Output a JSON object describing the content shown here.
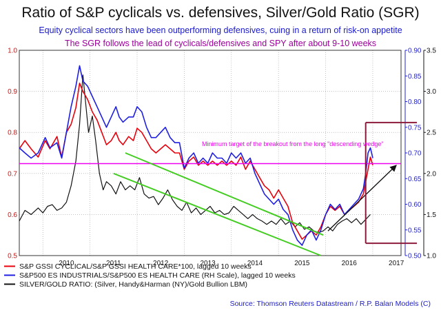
{
  "colors": {
    "red": "#e8000b",
    "blue": "#1e1ee0",
    "black": "#111111",
    "green": "#44cc22",
    "magenta": "#ee00ee",
    "maroon": "#8b1a3a",
    "left_axis": "#c21818",
    "right_axis": "#2222cc",
    "outer_axis": "#111111",
    "grid": "#9a9a9a",
    "title_line2": "#1a1acc",
    "title_line3": "#9a0099"
  },
  "chart_data": {
    "type": "line",
    "title": "Ratio of S&P cyclicals vs. defensives, Silver/Gold Ratio (SGR)",
    "subtitle": "Equity cyclical sectors have been outperforming defensives, cuing in a return of risk-on appetite",
    "subtitle2": "The SGR follows the lead of cyclicals/defensives and SPY after about 9-10 weeks",
    "x_ticks": [
      "2010",
      "2011",
      "2012",
      "2013",
      "2014",
      "2015",
      "2016",
      "2017"
    ],
    "xlim": [
      2009.5,
      2017.6
    ],
    "y_left": {
      "ticks": [
        "0.5",
        "0.6",
        "0.7",
        "0.8",
        "0.9",
        "1.0"
      ],
      "ylim": [
        0.5,
        1.0
      ]
    },
    "y_right_1": {
      "ticks": [
        "0.50",
        "0.55",
        "0.60",
        "0.65",
        "0.70",
        "0.75",
        "0.80",
        "0.85",
        "0.90"
      ],
      "ylim": [
        0.5,
        0.9
      ]
    },
    "y_right_2": {
      "ticks": [
        "1.0",
        "1.5",
        "2.0",
        "2.5",
        "3.0",
        "3.5"
      ],
      "ylim": [
        1.0,
        3.5
      ]
    },
    "series": [
      {
        "name": "S&P GSSI CYCLICAL/S&P GSSI HEALTH CARE*100, lagged 10 weeks",
        "color": "red",
        "axis": "left",
        "points": [
          [
            2009.5,
            0.76
          ],
          [
            2009.62,
            0.78
          ],
          [
            2009.75,
            0.76
          ],
          [
            2009.9,
            0.74
          ],
          [
            2010.05,
            0.78
          ],
          [
            2010.15,
            0.76
          ],
          [
            2010.3,
            0.79
          ],
          [
            2010.4,
            0.74
          ],
          [
            2010.5,
            0.8
          ],
          [
            2010.6,
            0.82
          ],
          [
            2010.7,
            0.86
          ],
          [
            2010.78,
            0.92
          ],
          [
            2010.85,
            0.9
          ],
          [
            2010.95,
            0.88
          ],
          [
            2011.05,
            0.85
          ],
          [
            2011.15,
            0.83
          ],
          [
            2011.25,
            0.8
          ],
          [
            2011.35,
            0.77
          ],
          [
            2011.45,
            0.78
          ],
          [
            2011.55,
            0.8
          ],
          [
            2011.62,
            0.78
          ],
          [
            2011.7,
            0.77
          ],
          [
            2011.82,
            0.79
          ],
          [
            2011.92,
            0.78
          ],
          [
            2012.0,
            0.81
          ],
          [
            2012.1,
            0.8
          ],
          [
            2012.2,
            0.78
          ],
          [
            2012.3,
            0.76
          ],
          [
            2012.4,
            0.75
          ],
          [
            2012.5,
            0.76
          ],
          [
            2012.6,
            0.77
          ],
          [
            2012.7,
            0.76
          ],
          [
            2012.8,
            0.75
          ],
          [
            2012.9,
            0.75
          ],
          [
            2013.0,
            0.71
          ],
          [
            2013.1,
            0.73
          ],
          [
            2013.2,
            0.74
          ],
          [
            2013.3,
            0.72
          ],
          [
            2013.4,
            0.73
          ],
          [
            2013.5,
            0.72
          ],
          [
            2013.6,
            0.73
          ],
          [
            2013.7,
            0.72
          ],
          [
            2013.8,
            0.73
          ],
          [
            2013.9,
            0.72
          ],
          [
            2014.0,
            0.73
          ],
          [
            2014.1,
            0.72
          ],
          [
            2014.2,
            0.74
          ],
          [
            2014.3,
            0.71
          ],
          [
            2014.4,
            0.73
          ],
          [
            2014.5,
            0.71
          ],
          [
            2014.6,
            0.69
          ],
          [
            2014.7,
            0.67
          ],
          [
            2014.8,
            0.66
          ],
          [
            2014.9,
            0.64
          ],
          [
            2015.0,
            0.66
          ],
          [
            2015.1,
            0.64
          ],
          [
            2015.2,
            0.62
          ],
          [
            2015.3,
            0.58
          ],
          [
            2015.4,
            0.56
          ],
          [
            2015.5,
            0.54
          ],
          [
            2015.6,
            0.55
          ],
          [
            2015.7,
            0.56
          ],
          [
            2015.8,
            0.55
          ],
          [
            2015.9,
            0.57
          ],
          [
            2016.0,
            0.6
          ],
          [
            2016.1,
            0.62
          ],
          [
            2016.2,
            0.61
          ],
          [
            2016.3,
            0.62
          ],
          [
            2016.4,
            0.6
          ],
          [
            2016.5,
            0.61
          ],
          [
            2016.6,
            0.62
          ],
          [
            2016.7,
            0.63
          ],
          [
            2016.8,
            0.65
          ],
          [
            2016.85,
            0.68
          ],
          [
            2016.9,
            0.71
          ],
          [
            2016.95,
            0.74
          ],
          [
            2017.0,
            0.72
          ]
        ]
      },
      {
        "name": "S&P500 ES INDUSTRIALS/S&P500 ES HEALTH CARE (RH Scale), lagged 10 weeks",
        "color": "blue",
        "axis": "right_1",
        "points": [
          [
            2009.5,
            0.71
          ],
          [
            2009.62,
            0.7
          ],
          [
            2009.75,
            0.69
          ],
          [
            2009.9,
            0.7
          ],
          [
            2010.05,
            0.73
          ],
          [
            2010.15,
            0.71
          ],
          [
            2010.3,
            0.72
          ],
          [
            2010.4,
            0.69
          ],
          [
            2010.5,
            0.74
          ],
          [
            2010.6,
            0.79
          ],
          [
            2010.7,
            0.83
          ],
          [
            2010.78,
            0.87
          ],
          [
            2010.85,
            0.84
          ],
          [
            2010.95,
            0.83
          ],
          [
            2011.05,
            0.81
          ],
          [
            2011.15,
            0.79
          ],
          [
            2011.25,
            0.77
          ],
          [
            2011.35,
            0.75
          ],
          [
            2011.45,
            0.77
          ],
          [
            2011.55,
            0.79
          ],
          [
            2011.62,
            0.77
          ],
          [
            2011.7,
            0.76
          ],
          [
            2011.82,
            0.77
          ],
          [
            2011.92,
            0.77
          ],
          [
            2012.0,
            0.79
          ],
          [
            2012.1,
            0.78
          ],
          [
            2012.2,
            0.75
          ],
          [
            2012.3,
            0.73
          ],
          [
            2012.4,
            0.73
          ],
          [
            2012.5,
            0.74
          ],
          [
            2012.6,
            0.75
          ],
          [
            2012.7,
            0.73
          ],
          [
            2012.8,
            0.72
          ],
          [
            2012.9,
            0.72
          ],
          [
            2013.0,
            0.67
          ],
          [
            2013.1,
            0.69
          ],
          [
            2013.2,
            0.7
          ],
          [
            2013.3,
            0.68
          ],
          [
            2013.4,
            0.69
          ],
          [
            2013.5,
            0.68
          ],
          [
            2013.6,
            0.7
          ],
          [
            2013.7,
            0.69
          ],
          [
            2013.8,
            0.69
          ],
          [
            2013.9,
            0.68
          ],
          [
            2014.0,
            0.7
          ],
          [
            2014.1,
            0.69
          ],
          [
            2014.2,
            0.7
          ],
          [
            2014.3,
            0.68
          ],
          [
            2014.4,
            0.69
          ],
          [
            2014.5,
            0.66
          ],
          [
            2014.6,
            0.64
          ],
          [
            2014.7,
            0.62
          ],
          [
            2014.8,
            0.61
          ],
          [
            2014.9,
            0.6
          ],
          [
            2015.0,
            0.61
          ],
          [
            2015.1,
            0.59
          ],
          [
            2015.2,
            0.58
          ],
          [
            2015.3,
            0.55
          ],
          [
            2015.4,
            0.53
          ],
          [
            2015.5,
            0.52
          ],
          [
            2015.6,
            0.54
          ],
          [
            2015.7,
            0.55
          ],
          [
            2015.8,
            0.53
          ],
          [
            2015.9,
            0.55
          ],
          [
            2016.0,
            0.58
          ],
          [
            2016.1,
            0.6
          ],
          [
            2016.2,
            0.59
          ],
          [
            2016.3,
            0.6
          ],
          [
            2016.4,
            0.58
          ],
          [
            2016.5,
            0.59
          ],
          [
            2016.6,
            0.6
          ],
          [
            2016.7,
            0.61
          ],
          [
            2016.8,
            0.63
          ],
          [
            2016.85,
            0.66
          ],
          [
            2016.9,
            0.7
          ],
          [
            2016.95,
            0.71
          ],
          [
            2017.0,
            0.69
          ]
        ]
      },
      {
        "name": "SILVER/GOLD RATIO: (Silver, Handy&Harman (NY)/Gold Bullion LBM)",
        "color": "black",
        "axis": "right_2",
        "points": [
          [
            2009.5,
            1.42
          ],
          [
            2009.62,
            1.55
          ],
          [
            2009.75,
            1.5
          ],
          [
            2009.9,
            1.58
          ],
          [
            2010.0,
            1.52
          ],
          [
            2010.1,
            1.6
          ],
          [
            2010.2,
            1.62
          ],
          [
            2010.3,
            1.55
          ],
          [
            2010.4,
            1.58
          ],
          [
            2010.5,
            1.65
          ],
          [
            2010.6,
            1.85
          ],
          [
            2010.7,
            2.15
          ],
          [
            2010.78,
            2.6
          ],
          [
            2010.85,
            3.2
          ],
          [
            2010.9,
            2.9
          ],
          [
            2010.97,
            2.5
          ],
          [
            2011.05,
            2.7
          ],
          [
            2011.12,
            2.4
          ],
          [
            2011.2,
            2.0
          ],
          [
            2011.28,
            1.8
          ],
          [
            2011.35,
            1.9
          ],
          [
            2011.45,
            1.85
          ],
          [
            2011.55,
            1.75
          ],
          [
            2011.65,
            1.9
          ],
          [
            2011.75,
            1.8
          ],
          [
            2011.85,
            1.85
          ],
          [
            2011.95,
            1.8
          ],
          [
            2012.05,
            1.95
          ],
          [
            2012.15,
            1.75
          ],
          [
            2012.25,
            1.7
          ],
          [
            2012.35,
            1.72
          ],
          [
            2012.45,
            1.62
          ],
          [
            2012.55,
            1.7
          ],
          [
            2012.65,
            1.8
          ],
          [
            2012.75,
            1.68
          ],
          [
            2012.85,
            1.6
          ],
          [
            2012.95,
            1.55
          ],
          [
            2013.05,
            1.65
          ],
          [
            2013.15,
            1.52
          ],
          [
            2013.25,
            1.58
          ],
          [
            2013.35,
            1.5
          ],
          [
            2013.45,
            1.55
          ],
          [
            2013.55,
            1.6
          ],
          [
            2013.65,
            1.52
          ],
          [
            2013.75,
            1.55
          ],
          [
            2013.85,
            1.5
          ],
          [
            2013.95,
            1.52
          ],
          [
            2014.05,
            1.6
          ],
          [
            2014.15,
            1.55
          ],
          [
            2014.25,
            1.5
          ],
          [
            2014.35,
            1.45
          ],
          [
            2014.45,
            1.5
          ],
          [
            2014.55,
            1.45
          ],
          [
            2014.65,
            1.42
          ],
          [
            2014.75,
            1.38
          ],
          [
            2014.85,
            1.42
          ],
          [
            2014.95,
            1.38
          ],
          [
            2015.05,
            1.45
          ],
          [
            2015.15,
            1.38
          ],
          [
            2015.25,
            1.42
          ],
          [
            2015.35,
            1.35
          ],
          [
            2015.45,
            1.4
          ],
          [
            2015.55,
            1.32
          ],
          [
            2015.65,
            1.35
          ],
          [
            2015.75,
            1.3
          ],
          [
            2015.85,
            1.28
          ],
          [
            2015.95,
            1.3
          ],
          [
            2016.05,
            1.35
          ],
          [
            2016.15,
            1.3
          ],
          [
            2016.25,
            1.38
          ],
          [
            2016.35,
            1.42
          ],
          [
            2016.45,
            1.45
          ],
          [
            2016.55,
            1.4
          ],
          [
            2016.65,
            1.45
          ],
          [
            2016.75,
            1.38
          ],
          [
            2016.85,
            1.44
          ],
          [
            2016.95,
            1.5
          ]
        ]
      }
    ],
    "overlays": [
      {
        "kind": "hline",
        "axis": "right_2",
        "y": 2.12,
        "x_range": [
          2009.5,
          2017.6
        ],
        "color": "magenta"
      },
      {
        "kind": "segment",
        "axis": "left",
        "from": [
          2011.5,
          0.7
        ],
        "to": [
          2015.9,
          0.5
        ],
        "color": "green"
      },
      {
        "kind": "segment",
        "axis": "left",
        "from": [
          2011.75,
          0.75
        ],
        "to": [
          2015.95,
          0.55
        ],
        "color": "green"
      },
      {
        "kind": "arrow",
        "axis": "right_2",
        "from": [
          2016.05,
          1.3
        ],
        "to": [
          2017.5,
          2.1
        ],
        "color": "black"
      }
    ],
    "annotation": "Minimum target of the breakout from the long \"descending wedge\"",
    "source": "Source: Thomson Reuters Datastream / R.P. Balan Models (C)"
  }
}
